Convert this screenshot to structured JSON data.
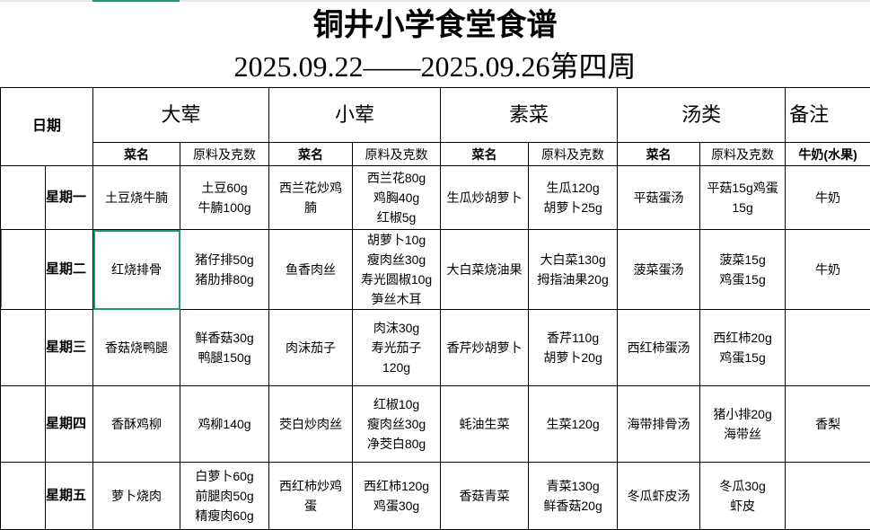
{
  "title": "铜井小学食堂食谱",
  "subtitle": "2025.09.22——2025.09.26第四周",
  "header": {
    "date": "日期",
    "groups": [
      "大荤",
      "小荤",
      "素菜",
      "汤类",
      "备注"
    ],
    "sub": [
      "菜名",
      "原料及克数",
      "菜名",
      "原料及克数",
      "菜名",
      "原料及克数",
      "菜名",
      "原料及克数",
      "牛奶(水果)"
    ]
  },
  "rows": [
    {
      "day": "星期一",
      "cells": [
        [
          "土豆烧牛腩"
        ],
        [
          "土豆60g",
          "牛腩100g"
        ],
        [
          "西兰花炒鸡",
          "腩"
        ],
        [
          "西兰花80g",
          "鸡胸40g",
          "红椒5g"
        ],
        [
          "生瓜炒胡萝卜"
        ],
        [
          "生瓜120g",
          "胡萝卜25g"
        ],
        [
          "平菇蛋汤"
        ],
        [
          "平菇15g鸡蛋",
          "15g"
        ],
        [
          "牛奶"
        ]
      ]
    },
    {
      "day": "星期二",
      "cells": [
        [
          "红烧排骨"
        ],
        [
          "猪仔排50g",
          "猪肋排80g"
        ],
        [
          "鱼香肉丝"
        ],
        [
          "胡萝卜10g",
          "瘦肉丝30g",
          "寿光圆椒10g",
          "笋丝木耳"
        ],
        [
          "大白菜烧油果"
        ],
        [
          "大白菜130g",
          "拇指油果20g"
        ],
        [
          "菠菜蛋汤"
        ],
        [
          "菠菜15g",
          "鸡蛋15g"
        ],
        [
          "牛奶"
        ]
      ]
    },
    {
      "day": "星期三",
      "cells": [
        [
          "香菇烧鸭腿"
        ],
        [
          "鲜香菇30g",
          "鸭腿150g"
        ],
        [
          "肉沫茄子"
        ],
        [
          "肉沫30g",
          "寿光茄子",
          "120g"
        ],
        [
          "香芹炒胡萝卜"
        ],
        [
          "香芹110g",
          "胡萝卜20g"
        ],
        [
          "西红柿蛋汤"
        ],
        [
          "西红柿20g",
          "鸡蛋15g"
        ],
        []
      ]
    },
    {
      "day": "星期四",
      "cells": [
        [
          "香酥鸡柳"
        ],
        [
          "鸡柳140g"
        ],
        [
          "茭白炒肉丝"
        ],
        [
          "红椒10g",
          "瘦肉丝30g",
          "净茭白80g"
        ],
        [
          "蚝油生菜"
        ],
        [
          "生菜120g"
        ],
        [
          "海带排骨汤"
        ],
        [
          "猪小排20g",
          "海带丝"
        ],
        [
          "香梨"
        ]
      ]
    },
    {
      "day": "星期五",
      "cells": [
        [
          "萝卜烧肉"
        ],
        [
          "白萝卜60g",
          "前腿肉50g",
          "精瘦肉60g"
        ],
        [
          "西红柿炒鸡",
          "蛋"
        ],
        [
          "西红柿120g",
          "鸡蛋30g"
        ],
        [
          "香菇青菜"
        ],
        [
          "青菜130g",
          "鲜香菇20g"
        ],
        [
          "冬瓜虾皮汤"
        ],
        [
          "冬瓜30g",
          "虾皮"
        ],
        []
      ]
    }
  ],
  "colors": {
    "selection": "#1e9f6a"
  }
}
